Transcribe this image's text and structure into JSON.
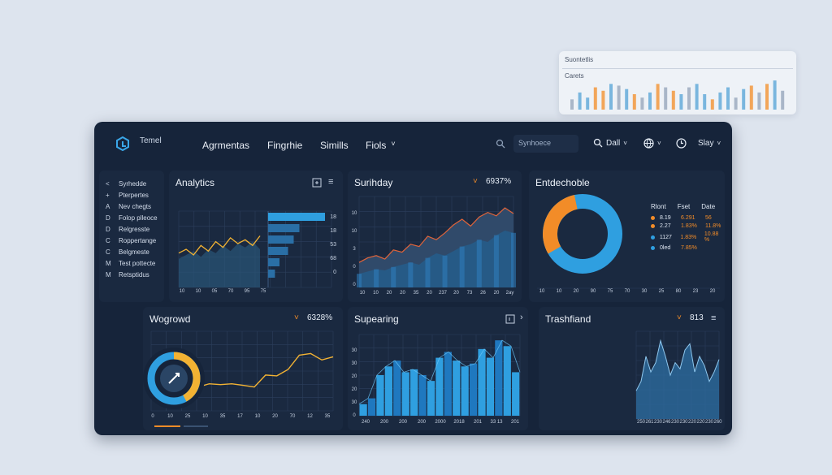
{
  "floating_panel": {
    "title": "Suontetlis",
    "subtitle": "Carets",
    "bars": [
      12,
      20,
      14,
      26,
      22,
      30,
      28,
      24,
      18,
      14,
      20,
      30,
      26,
      22,
      18,
      26,
      30,
      18,
      12,
      20,
      26,
      14,
      24,
      28,
      20,
      30,
      34,
      22
    ]
  },
  "header": {
    "brand": "Temel",
    "nav": [
      "Agrmentas",
      "Fingrhie",
      "Simills",
      "Fiols"
    ],
    "search_placeholder": "Synhoece",
    "dropdown_1": "Dall",
    "dropdown_3": "Slay"
  },
  "sidebar": {
    "items": [
      {
        "key": "<",
        "label": "Syrhedde"
      },
      {
        "key": "+",
        "label": "Pterpertes"
      },
      {
        "key": "A",
        "label": "Nev chegts"
      },
      {
        "key": "D",
        "label": "Folop plleoce"
      },
      {
        "key": "D",
        "label": "Relgresste"
      },
      {
        "key": "C",
        "label": "Roppertange"
      },
      {
        "key": "C",
        "label": "Belgmeste"
      },
      {
        "key": "M",
        "label": "Test pottecte"
      },
      {
        "key": "M",
        "label": "Retsptidus"
      }
    ]
  },
  "analytics": {
    "title": "Analytics",
    "y_labels": [
      "18",
      "18",
      "53",
      "68",
      "0"
    ],
    "x_labels": [
      "10",
      "10",
      "05",
      "70",
      "95",
      "75"
    ],
    "bars": [
      1.0,
      0.55,
      0.45,
      0.35,
      0.2,
      0.12
    ]
  },
  "surihday": {
    "title": "Surihday",
    "value": "6937%",
    "y_labels": [
      "10",
      "10",
      "3",
      "0",
      "0"
    ],
    "x_labels": [
      "10",
      "10",
      "20",
      "20",
      "35",
      "20",
      "237",
      "20",
      "73",
      "26",
      "20",
      "2ay"
    ],
    "series_a": [
      22,
      26,
      28,
      25,
      33,
      31,
      38,
      36,
      45,
      42,
      48,
      55,
      60,
      54,
      62,
      66,
      63,
      70,
      65
    ],
    "series_b": [
      12,
      14,
      16,
      15,
      18,
      20,
      22,
      20,
      26,
      30,
      28,
      32,
      36,
      38,
      42,
      40,
      46,
      50,
      48
    ]
  },
  "entdechoble": {
    "title": "Entdechoble",
    "legend_headers": [
      "Rlont",
      "Fset",
      "Date"
    ],
    "legend_rows": [
      {
        "color": "#f28c28",
        "label": "8.19",
        "v1": "6.291",
        "v2": "56"
      },
      {
        "color": "#f28c28",
        "label": "2.27",
        "v1": "1.83%",
        "v2": "11.8%"
      },
      {
        "color": "#2f9fe0",
        "label": "1127",
        "v1": "1.83%",
        "v2": "10.88 %"
      },
      {
        "color": "#2f9fe0",
        "label": "0led",
        "v1": "7.85%",
        "v2": ""
      }
    ],
    "slices": [
      0.3,
      0.7
    ],
    "x_labels": [
      "10",
      "10",
      "20",
      "90",
      "75",
      "70",
      "30",
      "25",
      "80",
      "23",
      "20"
    ]
  },
  "wogrowd": {
    "title": "Wogrowd",
    "value": "6328%",
    "x_labels": [
      "0",
      "10",
      "25",
      "10",
      "35",
      "17",
      "10",
      "20",
      "70",
      "12",
      "35"
    ],
    "series": [
      20,
      24,
      30,
      34,
      33,
      34,
      32,
      30,
      45,
      44,
      52,
      70,
      72,
      64,
      68
    ]
  },
  "supearing": {
    "title": "Supearing",
    "y_labels": [
      "30",
      "30",
      "20",
      "20",
      "30",
      "0"
    ],
    "x_labels": [
      "240",
      "200",
      "200",
      "200",
      "2000",
      "2018",
      "201",
      "33 13",
      "201"
    ],
    "values": [
      8,
      12,
      28,
      34,
      38,
      30,
      32,
      28,
      24,
      40,
      44,
      38,
      34,
      36,
      46,
      40,
      52,
      48,
      30
    ]
  },
  "trashfiand": {
    "title": "Trashfiand",
    "value": "813",
    "x_labels": [
      "250",
      "261",
      "230",
      "246",
      "230",
      "230",
      "220",
      "220",
      "230",
      "260"
    ],
    "series": [
      18,
      24,
      40,
      30,
      36,
      50,
      40,
      28,
      36,
      32,
      44,
      48,
      30,
      40,
      34,
      24,
      30,
      38
    ]
  },
  "colors": {
    "accent_blue": "#2f9fe0",
    "accent_orange": "#f28c28",
    "panel": "#1a2940",
    "background": "#16243a"
  }
}
